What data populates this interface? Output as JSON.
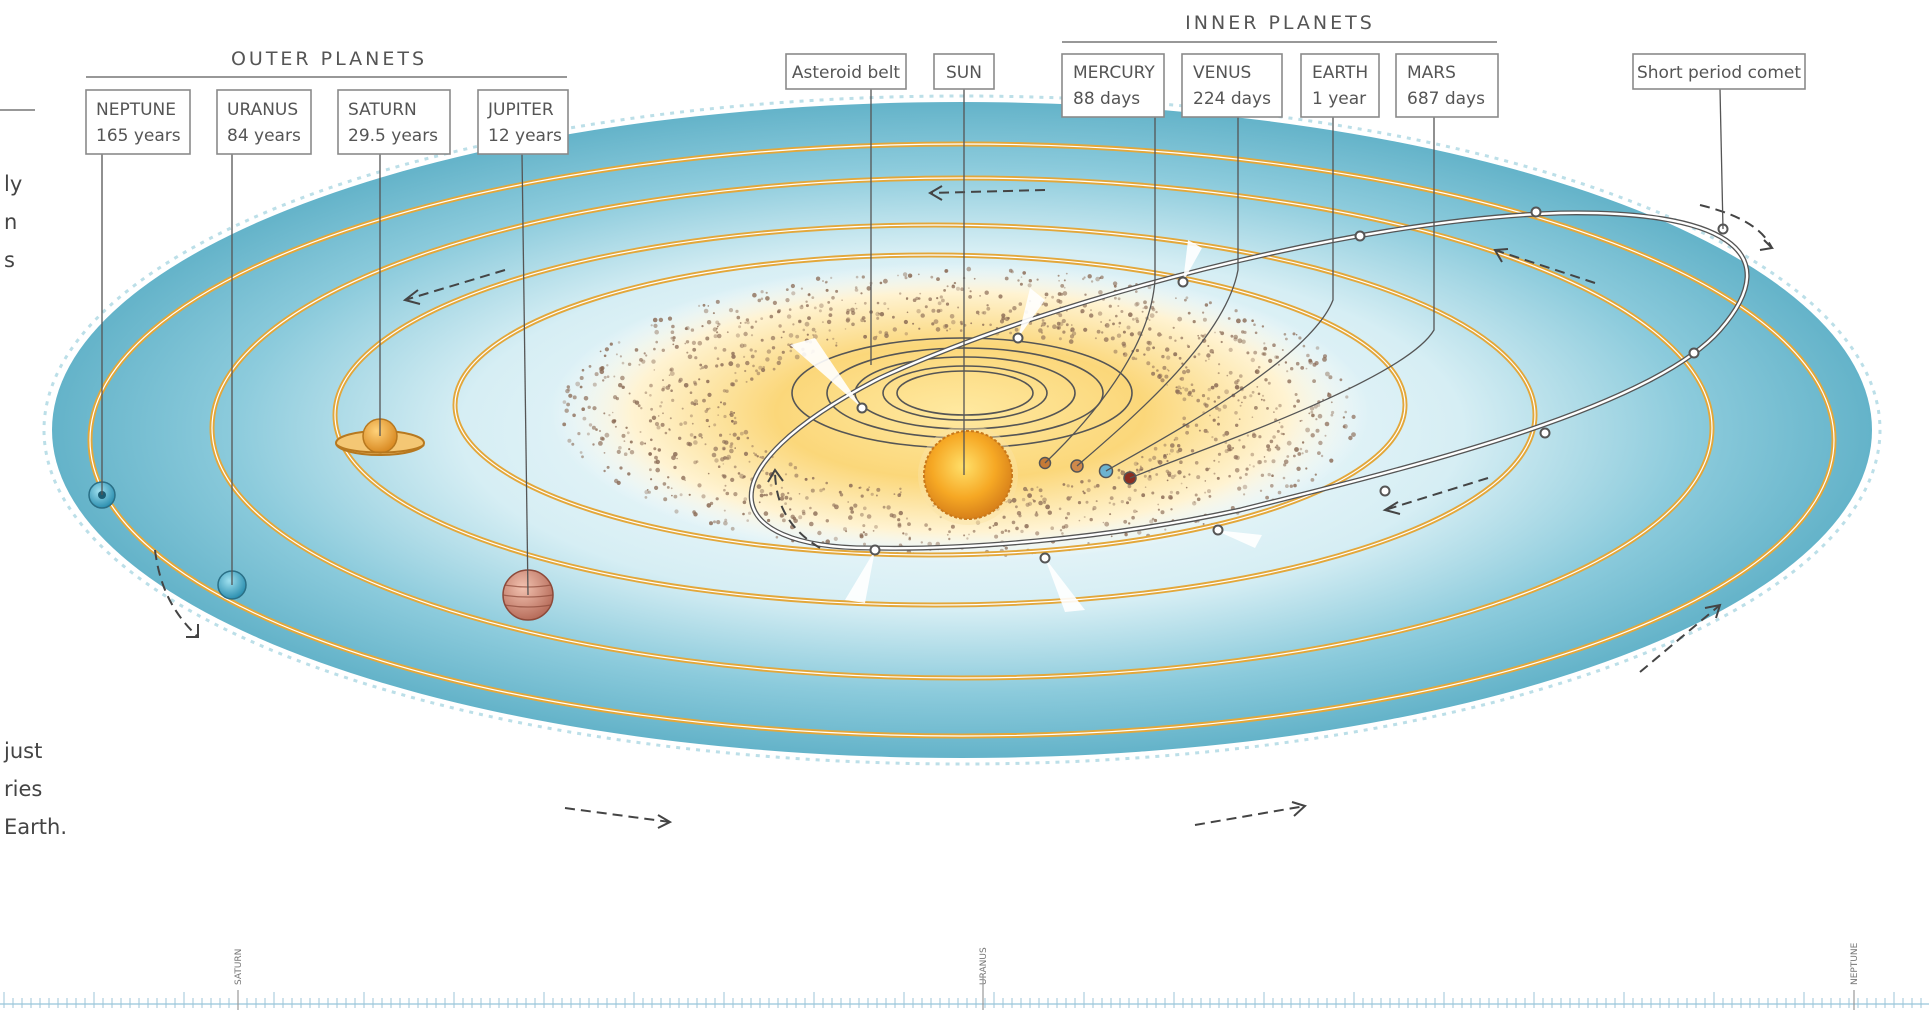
{
  "groups": {
    "outer": "OUTER PLANETS",
    "inner": "INNER PLANETS"
  },
  "labels": {
    "neptune": {
      "name": "NEPTUNE",
      "period": "165 years"
    },
    "uranus": {
      "name": "URANUS",
      "period": "84 years"
    },
    "saturn": {
      "name": "SATURN",
      "period": "29.5 years"
    },
    "jupiter": {
      "name": "JUPITER",
      "period": "12 years"
    },
    "asteroid_belt": "Asteroid belt",
    "sun": "SUN",
    "mercury": {
      "name": "MERCURY",
      "period": "88 days"
    },
    "venus": {
      "name": "VENUS",
      "period": "224 days"
    },
    "earth": {
      "name": "EARTH",
      "period": "1 year"
    },
    "mars": {
      "name": "MARS",
      "period": "687 days"
    },
    "comet": "Short period comet"
  },
  "side_text": {
    "top": "ly\nn\ns",
    "bottom": "just\nries\nEarth."
  },
  "ruler": {
    "saturn": "SATURN",
    "uranus": "URANUS",
    "neptune": "NEPTUNE"
  },
  "colors": {
    "orbit": "#e3a73a",
    "disc": "#7cc1d4",
    "sun": "#f2a51f",
    "asteroid": "#8a6a55"
  }
}
